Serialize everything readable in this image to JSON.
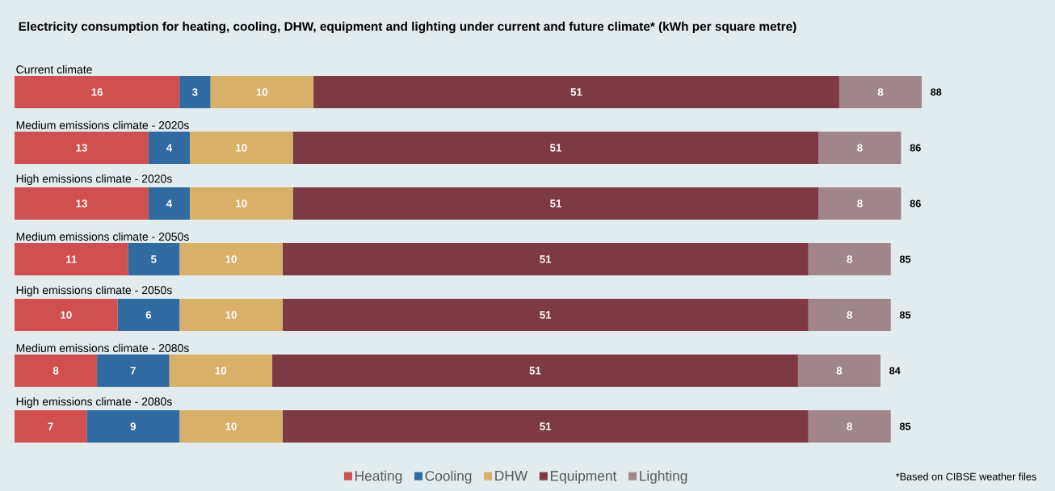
{
  "chart_data": {
    "type": "bar",
    "orientation": "horizontal",
    "stacked": true,
    "data_labels": true,
    "title": "Electricity consumption for heating, cooling, DHW, equipment and lighting under current and future climate* (kWh per square metre)",
    "categories": [
      "Current climate",
      "Medium emissions climate - 2020s",
      "High emissions climate - 2020s",
      "Medium emissions climate - 2050s",
      "High emissions climate - 2050s",
      "Medium emissions climate - 2080s",
      "High emissions climate - 2080s"
    ],
    "series": [
      {
        "name": "Heating",
        "color": "#d05050",
        "values": [
          16,
          13,
          13,
          11,
          10,
          8,
          7
        ]
      },
      {
        "name": "Cooling",
        "color": "#2f6aa0",
        "values": [
          3,
          4,
          4,
          5,
          6,
          7,
          9
        ]
      },
      {
        "name": "DHW",
        "color": "#d8b06a",
        "values": [
          10,
          10,
          10,
          10,
          10,
          10,
          10
        ]
      },
      {
        "name": "Equipment",
        "color": "#7d3a45",
        "values": [
          51,
          51,
          51,
          51,
          51,
          51,
          51
        ]
      },
      {
        "name": "Lighting",
        "color": "#a0858a",
        "values": [
          8,
          8,
          8,
          8,
          8,
          8,
          8
        ]
      }
    ],
    "totals": [
      "88",
      "86",
      "86",
      "85",
      "85",
      "84",
      "85"
    ],
    "legend": "bottom",
    "annotations": [
      "*Based on CIBSE weather files"
    ]
  }
}
